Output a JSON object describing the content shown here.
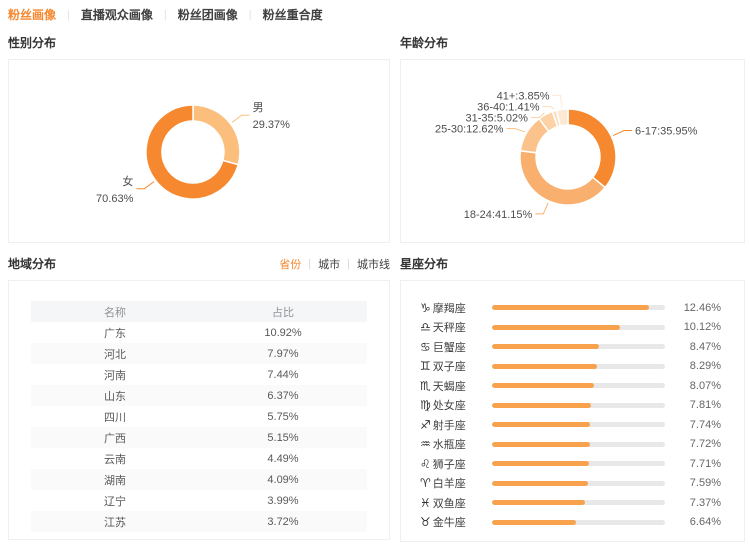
{
  "page": {
    "tabs": [
      {
        "id": "tab-fan-portrait",
        "label": "粉丝画像",
        "active": true
      },
      {
        "id": "tab-live-audience-portrait",
        "label": "直播观众画像",
        "active": false
      },
      {
        "id": "tab-fan-club-portrait",
        "label": "粉丝团画像",
        "active": false
      },
      {
        "id": "tab-fan-overlap",
        "label": "粉丝重合度",
        "active": false
      }
    ],
    "colors": {
      "accent": "#f6882f",
      "light_orange": "#fbbe7c",
      "bar_fill": "#f9a24d",
      "bar_track": "#e8e8e8"
    }
  },
  "panels": {
    "gender": {
      "title": "性别分布"
    },
    "age": {
      "title": "年龄分布"
    },
    "region": {
      "title": "地域分布",
      "tabs": [
        {
          "id": "region-tab-province",
          "label": "省份",
          "active": true
        },
        {
          "id": "region-tab-city",
          "label": "城市",
          "active": false
        },
        {
          "id": "region-tab-city-tier",
          "label": "城市线",
          "active": false
        }
      ]
    },
    "zodiac": {
      "title": "星座分布"
    }
  },
  "chart_data": [
    {
      "id": "gender",
      "type": "pie",
      "title": "性别分布",
      "labels": [
        "男",
        "女"
      ],
      "values": [
        29.37,
        70.63
      ],
      "colors": [
        "#fbbe7c",
        "#f6882f"
      ],
      "unit": "%",
      "label_style": "two-line",
      "donut": true
    },
    {
      "id": "age",
      "type": "pie",
      "title": "年龄分布",
      "labels": [
        "6-17",
        "18-24",
        "25-30",
        "31-35",
        "36-40",
        "41+"
      ],
      "values": [
        35.95,
        41.15,
        12.62,
        5.02,
        1.41,
        3.85
      ],
      "colors": [
        "#f6882f",
        "#f9b06e",
        "#fbc38b",
        "#fcd2a6",
        "#fdddbe",
        "#fde9d3"
      ],
      "unit": "%",
      "label_style": "inline",
      "donut": true
    },
    {
      "id": "region",
      "type": "table",
      "title": "地域分布",
      "columns": [
        "名称",
        "占比"
      ],
      "rows": [
        [
          "广东",
          "10.92%"
        ],
        [
          "河北",
          "7.97%"
        ],
        [
          "河南",
          "7.44%"
        ],
        [
          "山东",
          "6.37%"
        ],
        [
          "四川",
          "5.75%"
        ],
        [
          "广西",
          "5.15%"
        ],
        [
          "云南",
          "4.49%"
        ],
        [
          "湖南",
          "4.09%"
        ],
        [
          "辽宁",
          "3.99%"
        ],
        [
          "江苏",
          "3.72%"
        ]
      ]
    },
    {
      "id": "zodiac",
      "type": "bar",
      "title": "星座分布",
      "orientation": "horizontal",
      "categories": [
        "摩羯座",
        "天秤座",
        "巨蟹座",
        "双子座",
        "天蝎座",
        "处女座",
        "射手座",
        "水瓶座",
        "狮子座",
        "白羊座",
        "双鱼座",
        "金牛座"
      ],
      "icons": [
        "♑",
        "♎",
        "♋",
        "♊",
        "♏",
        "♍",
        "♐",
        "♒",
        "♌",
        "♈",
        "♓",
        "♉"
      ],
      "values": [
        12.46,
        10.12,
        8.47,
        8.29,
        8.07,
        7.81,
        7.74,
        7.72,
        7.71,
        7.59,
        7.37,
        6.64
      ],
      "unit": "%",
      "xlim": [
        0,
        13.7
      ],
      "grid": false,
      "legend": "none"
    }
  ]
}
